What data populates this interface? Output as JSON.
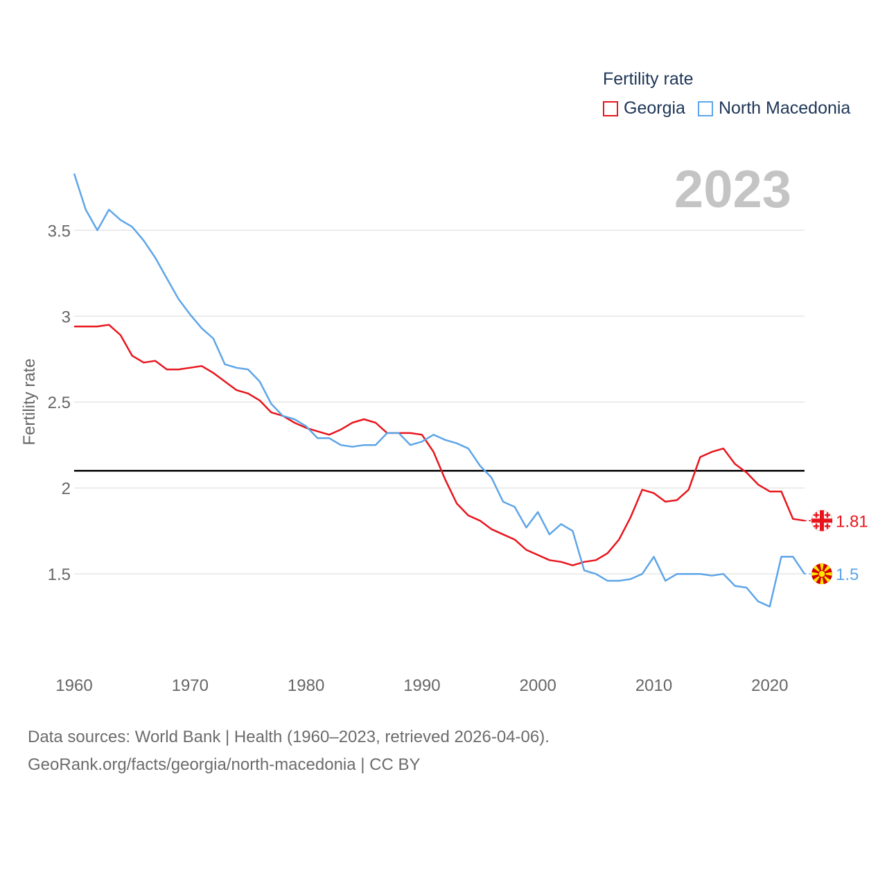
{
  "legend": {
    "title": "Fertility rate",
    "series_labels": [
      "Georgia",
      "North Macedonia"
    ]
  },
  "year_display": "2023",
  "source": {
    "line1": "Data sources: World Bank | Health (1960–2023, retrieved 2026-04-06).",
    "line2": "GeoRank.org/facts/georgia/north-macedonia | CC BY"
  },
  "chart_data": {
    "type": "line",
    "title": "Fertility rate",
    "xlabel": "",
    "ylabel": "Fertility rate",
    "xlim": [
      1960,
      2023
    ],
    "ylim": [
      1.17,
      3.84
    ],
    "x_ticks": [
      1960,
      1970,
      1980,
      1990,
      2000,
      2010,
      2020
    ],
    "y_ticks": [
      1.5,
      2,
      2.5,
      3,
      3.5
    ],
    "y_tick_labels": [
      "1.5",
      "2",
      "2.5",
      "3",
      "3.5"
    ],
    "reference_line": 2.1,
    "x": [
      1960,
      1961,
      1962,
      1963,
      1964,
      1965,
      1966,
      1967,
      1968,
      1969,
      1970,
      1971,
      1972,
      1973,
      1974,
      1975,
      1976,
      1977,
      1978,
      1979,
      1980,
      1981,
      1982,
      1983,
      1984,
      1985,
      1986,
      1987,
      1988,
      1989,
      1990,
      1991,
      1992,
      1993,
      1994,
      1995,
      1996,
      1997,
      1998,
      1999,
      2000,
      2001,
      2002,
      2003,
      2004,
      2005,
      2006,
      2007,
      2008,
      2009,
      2010,
      2011,
      2012,
      2013,
      2014,
      2015,
      2016,
      2017,
      2018,
      2019,
      2020,
      2021,
      2022,
      2023
    ],
    "series": [
      {
        "name": "Georgia",
        "color": "#e8141c",
        "end_label": "1.81",
        "values": [
          2.94,
          2.94,
          2.94,
          2.95,
          2.89,
          2.77,
          2.73,
          2.74,
          2.69,
          2.69,
          2.7,
          2.71,
          2.67,
          2.62,
          2.57,
          2.55,
          2.51,
          2.44,
          2.42,
          2.38,
          2.35,
          2.33,
          2.31,
          2.34,
          2.38,
          2.4,
          2.38,
          2.32,
          2.32,
          2.32,
          2.31,
          2.21,
          2.05,
          1.91,
          1.84,
          1.81,
          1.76,
          1.73,
          1.7,
          1.64,
          1.61,
          1.58,
          1.57,
          1.55,
          1.57,
          1.58,
          1.62,
          1.7,
          1.83,
          1.99,
          1.97,
          1.92,
          1.93,
          1.99,
          2.18,
          2.21,
          2.23,
          2.14,
          2.09,
          2.02,
          1.98,
          1.98,
          1.82,
          1.81
        ]
      },
      {
        "name": "North Macedonia",
        "color": "#5da5e8",
        "end_label": "1.5",
        "values": [
          3.83,
          3.62,
          3.5,
          3.62,
          3.56,
          3.52,
          3.44,
          3.34,
          3.22,
          3.1,
          3.01,
          2.93,
          2.87,
          2.72,
          2.7,
          2.69,
          2.62,
          2.49,
          2.42,
          2.4,
          2.36,
          2.29,
          2.29,
          2.25,
          2.24,
          2.25,
          2.25,
          2.32,
          2.32,
          2.25,
          2.27,
          2.31,
          2.28,
          2.26,
          2.23,
          2.13,
          2.06,
          1.92,
          1.89,
          1.77,
          1.86,
          1.73,
          1.79,
          1.75,
          1.52,
          1.5,
          1.46,
          1.46,
          1.47,
          1.5,
          1.6,
          1.46,
          1.5,
          1.5,
          1.5,
          1.49,
          1.5,
          1.43,
          1.42,
          1.34,
          1.31,
          1.6,
          1.6,
          1.5
        ]
      }
    ]
  }
}
